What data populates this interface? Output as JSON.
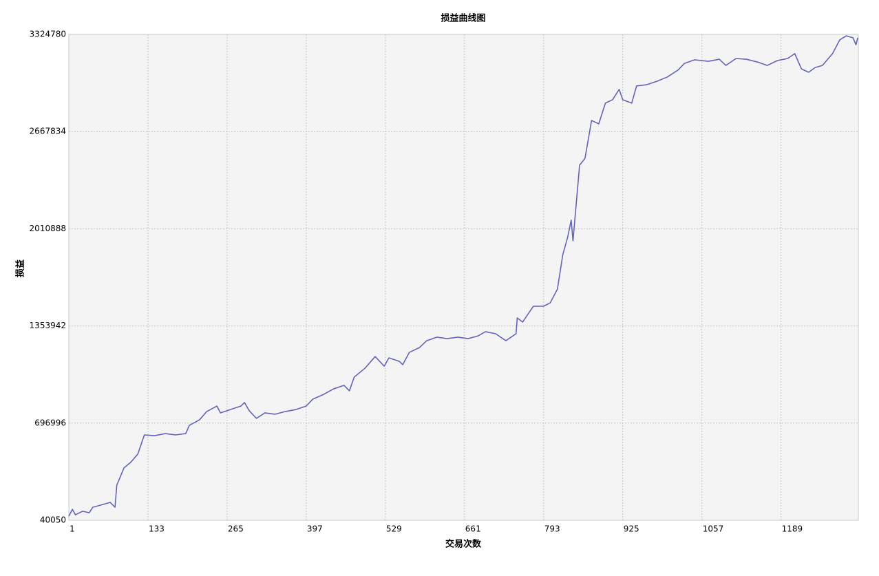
{
  "chart_data": {
    "type": "line",
    "title": "损益曲线图",
    "x_label": "交易次数",
    "y_label": "损益",
    "xlim": [
      1,
      1318
    ],
    "ylim": [
      40050,
      3324780
    ],
    "xticks": [
      1,
      133,
      265,
      397,
      529,
      661,
      793,
      925,
      1057,
      1189
    ],
    "yticks": [
      40050,
      696996,
      1353942,
      2010888,
      2667834,
      3324780
    ],
    "grid": true,
    "series": [
      {
        "color": "#6363b8",
        "x": [
          1,
          7,
          12,
          24,
          35,
          41,
          58,
          70,
          78,
          81,
          93,
          104,
          116,
          127,
          144,
          162,
          179,
          196,
          202,
          219,
          231,
          248,
          254,
          271,
          288,
          294,
          302,
          314,
          328,
          345,
          362,
          380,
          397,
          408,
          426,
          443,
          460,
          469,
          477,
          495,
          512,
          527,
          535,
          552,
          558,
          569,
          586,
          598,
          615,
          632,
          650,
          667,
          684,
          696,
          713,
          730,
          747,
          749,
          758,
          768,
          776,
          793,
          804,
          816,
          825,
          833,
          839,
          842,
          848,
          853,
          862,
          869,
          873,
          885,
          896,
          908,
          919,
          925,
          940,
          948,
          965,
          982,
          999,
          1017,
          1028,
          1045,
          1068,
          1086,
          1097,
          1114,
          1131,
          1149,
          1166,
          1183,
          1200,
          1212,
          1223,
          1235,
          1246,
          1258,
          1275,
          1287,
          1298,
          1309,
          1314,
          1317
        ],
        "values": [
          68000,
          114000,
          77000,
          101000,
          91000,
          128000,
          147000,
          161000,
          128000,
          277000,
          394000,
          431000,
          487000,
          617000,
          612000,
          626000,
          617000,
          626000,
          682000,
          719000,
          775000,
          812000,
          766000,
          789000,
          812000,
          836000,
          780000,
          729000,
          766000,
          757000,
          775000,
          789000,
          812000,
          859000,
          891000,
          929000,
          952000,
          915000,
          1008000,
          1068000,
          1147000,
          1082000,
          1138000,
          1115000,
          1092000,
          1175000,
          1208000,
          1254000,
          1278000,
          1268000,
          1278000,
          1268000,
          1287000,
          1315000,
          1301000,
          1254000,
          1301000,
          1408000,
          1380000,
          1440000,
          1487000,
          1487000,
          1510000,
          1603000,
          1836000,
          1952000,
          2069000,
          1929000,
          2208000,
          2441000,
          2487000,
          2650000,
          2743000,
          2720000,
          2860000,
          2883000,
          2953000,
          2883000,
          2860000,
          2976000,
          2985000,
          3008000,
          3036000,
          3083000,
          3129000,
          3153000,
          3143000,
          3157000,
          3115000,
          3162000,
          3157000,
          3139000,
          3115000,
          3148000,
          3162000,
          3195000,
          3092000,
          3069000,
          3101000,
          3115000,
          3195000,
          3288000,
          3315000,
          3302000,
          3255000,
          3302000
        ]
      }
    ]
  }
}
